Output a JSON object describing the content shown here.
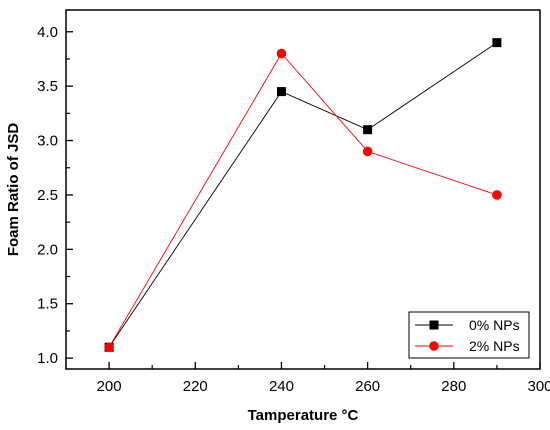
{
  "chart_data": {
    "type": "line",
    "title": "",
    "xlabel": "Tamperature °C",
    "ylabel": "Foam Ratio of JSD",
    "xlim": [
      190,
      300
    ],
    "ylim": [
      0.9,
      4.2
    ],
    "x_ticks": [
      200,
      220,
      240,
      260,
      280,
      300
    ],
    "y_ticks": [
      1.0,
      1.5,
      2.0,
      2.5,
      3.0,
      3.5,
      4.0
    ],
    "x_tick_labels": [
      "200",
      "220",
      "240",
      "260",
      "280",
      "300"
    ],
    "y_tick_labels": [
      "1.0",
      "1.5",
      "2.0",
      "2.5",
      "3.0",
      "3.5",
      "4.0"
    ],
    "grid": false,
    "legend_position": "bottom-right",
    "series": [
      {
        "name": "0% NPs",
        "color": "#000000",
        "marker": "square",
        "x": [
          200,
          240,
          260,
          290
        ],
        "y": [
          1.1,
          3.45,
          3.1,
          3.9
        ]
      },
      {
        "name": "2% NPs",
        "color": "#ff0000",
        "marker": "circle",
        "x": [
          200,
          240,
          260,
          290
        ],
        "y": [
          1.1,
          3.8,
          2.9,
          2.5
        ]
      }
    ]
  }
}
